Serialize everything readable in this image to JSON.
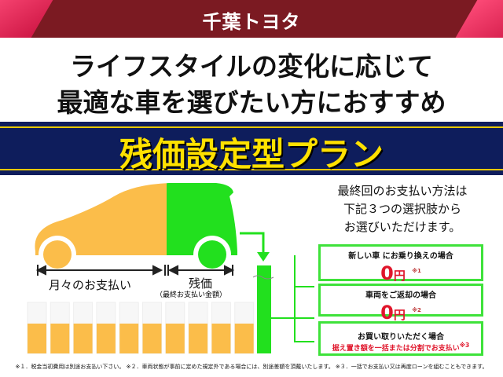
{
  "header": {
    "logo": "千葉トヨタ",
    "color": "#7b1a22"
  },
  "headline": {
    "line1": "ライフスタイルの変化に応じて",
    "line2": "最適な車を選びたい方におすすめ"
  },
  "plan": {
    "title": "残価設定型プラン",
    "band_color": "#0e1d5c",
    "title_color": "#ffe100"
  },
  "diagram": {
    "monthly_label": "月々のお支払い",
    "residual_label": "残価",
    "residual_sub": "（最終お支払い金額）",
    "orange": "#fbbd4a",
    "green": "#22e01e",
    "monthly_bars": 10
  },
  "options": {
    "intro": [
      "最終回のお支払い方法は",
      "下記３つの選択肢から",
      "お選びいただけます。"
    ],
    "items": [
      {
        "title": "新しい車 にお乗り換えの場合",
        "amount": "0",
        "unit": "円",
        "note": "※1"
      },
      {
        "title": "車両をご返却の場合",
        "amount": "0",
        "unit": "円",
        "note": "※2"
      },
      {
        "title": "お買い取りいただく場合",
        "detail": "据え置き額を一括または分割でお支払い",
        "note": "※3"
      }
    ]
  },
  "footnote": "※１．税金当初費用は別途お支払い下さい。 ※２．車両状態が事前に定めた規定外である場合には、別途差額を頂戴いたします。 ※３．一括でお支払い又は再度ローンを組むこともできます。"
}
